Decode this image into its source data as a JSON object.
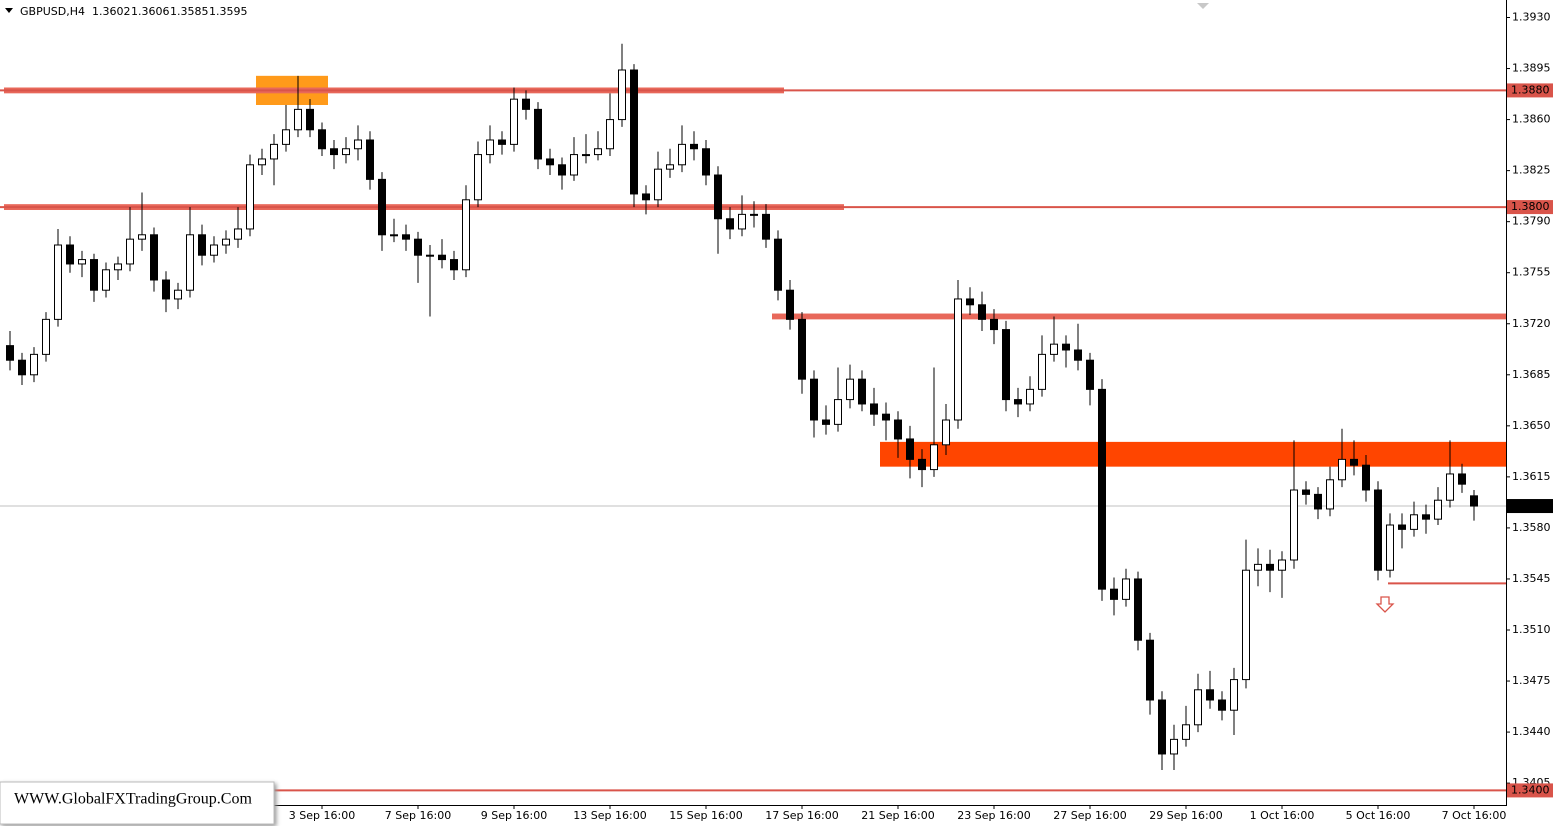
{
  "chart_data": {
    "type": "candlestick",
    "title": "GBPUSD,H4",
    "ylim": [
      1.339,
      1.3942
    ],
    "yticks": [
      {
        "value": 1.393,
        "label": "1.3930"
      },
      1.3895,
      {
        "value": 1.386,
        "label": "1.3860"
      },
      1.3825,
      {
        "value": 1.379,
        "label": "1.3790"
      },
      1.3755,
      {
        "value": 1.372,
        "label": "1.3720"
      },
      1.3685,
      {
        "value": 1.365,
        "label": "1.3650"
      },
      1.3615,
      {
        "value": 1.358,
        "label": "1.3580"
      },
      1.3545,
      {
        "value": 1.351,
        "label": "1.3510"
      },
      1.3475,
      {
        "value": 1.344,
        "label": "1.3440"
      },
      1.3405
    ],
    "categories": [
      null,
      null,
      null,
      null,
      null,
      null,
      null,
      null,
      null,
      null,
      null,
      null,
      null,
      null,
      null,
      null,
      null,
      null,
      null,
      null,
      null,
      null,
      null,
      null,
      null,
      null,
      "3 Sep 16:00",
      null,
      null,
      null,
      null,
      null,
      null,
      null,
      "7 Sep 16:00",
      null,
      null,
      null,
      null,
      null,
      null,
      null,
      "9 Sep 16:00",
      null,
      null,
      null,
      null,
      null,
      null,
      null,
      "13 Sep 16:00",
      null,
      null,
      null,
      null,
      null,
      null,
      null,
      "15 Sep 16:00",
      null,
      null,
      null,
      null,
      null,
      null,
      null,
      "17 Sep 16:00",
      null,
      null,
      null,
      null,
      null,
      null,
      null,
      "21 Sep 16:00",
      null,
      null,
      null,
      null,
      null,
      null,
      null,
      "23 Sep 16:00",
      null,
      null,
      null,
      null,
      null,
      null,
      null,
      "27 Sep 16:00",
      null,
      null,
      null,
      null,
      null,
      null,
      null,
      "29 Sep 16:00",
      null,
      null,
      null,
      null,
      null,
      null,
      null,
      "1 Oct 16:00",
      null,
      null,
      null,
      null,
      null,
      null,
      null,
      "5 Oct 16:00",
      null,
      null,
      null,
      null,
      null,
      null,
      null,
      "7 Oct 16:00"
    ],
    "ohlc": [
      [
        1.3705,
        1.3715,
        1.3688,
        1.3695
      ],
      [
        1.3695,
        1.37,
        1.3678,
        1.3685
      ],
      [
        1.3685,
        1.3704,
        1.368,
        1.3699
      ],
      [
        1.3699,
        1.3728,
        1.3694,
        1.3723
      ],
      [
        1.3723,
        1.3785,
        1.3718,
        1.3774
      ],
      [
        1.3774,
        1.378,
        1.3755,
        1.3761
      ],
      [
        1.3761,
        1.377,
        1.3752,
        1.3764
      ],
      [
        1.3764,
        1.3768,
        1.3735,
        1.3743
      ],
      [
        1.3743,
        1.3762,
        1.3738,
        1.3757
      ],
      [
        1.3757,
        1.3766,
        1.375,
        1.3761
      ],
      [
        1.3761,
        1.38,
        1.3756,
        1.3778
      ],
      [
        1.3778,
        1.381,
        1.377,
        1.3781
      ],
      [
        1.3781,
        1.3786,
        1.3742,
        1.375
      ],
      [
        1.375,
        1.3756,
        1.3728,
        1.3737
      ],
      [
        1.3737,
        1.3748,
        1.373,
        1.3743
      ],
      [
        1.3743,
        1.38,
        1.3738,
        1.3781
      ],
      [
        1.3781,
        1.3788,
        1.376,
        1.3767
      ],
      [
        1.3767,
        1.378,
        1.3762,
        1.3774
      ],
      [
        1.3774,
        1.3784,
        1.3768,
        1.3778
      ],
      [
        1.3778,
        1.38,
        1.3772,
        1.3785
      ],
      [
        1.3785,
        1.3836,
        1.378,
        1.3829
      ],
      [
        1.3829,
        1.384,
        1.3822,
        1.3833
      ],
      [
        1.3833,
        1.385,
        1.3815,
        1.3843
      ],
      [
        1.3843,
        1.387,
        1.3838,
        1.3853
      ],
      [
        1.3853,
        1.389,
        1.3848,
        1.3867
      ],
      [
        1.3867,
        1.3874,
        1.3848,
        1.3853
      ],
      [
        1.3853,
        1.3858,
        1.3835,
        1.384
      ],
      [
        1.384,
        1.3846,
        1.3826,
        1.3836
      ],
      [
        1.3836,
        1.3848,
        1.383,
        1.384
      ],
      [
        1.384,
        1.3856,
        1.3832,
        1.3846
      ],
      [
        1.3846,
        1.3852,
        1.3812,
        1.3819
      ],
      [
        1.3819,
        1.3824,
        1.377,
        1.3781
      ],
      [
        1.3781,
        1.3792,
        1.3776,
        1.3781
      ],
      [
        1.3781,
        1.3788,
        1.377,
        1.3778
      ],
      [
        1.3778,
        1.3783,
        1.3748,
        1.3767
      ],
      [
        1.3767,
        1.3774,
        1.3725,
        1.3767
      ],
      [
        1.3767,
        1.3778,
        1.3758,
        1.3764
      ],
      [
        1.3764,
        1.377,
        1.375,
        1.3757
      ],
      [
        1.3757,
        1.3815,
        1.3752,
        1.3805
      ],
      [
        1.3805,
        1.3845,
        1.38,
        1.3836
      ],
      [
        1.3836,
        1.3856,
        1.383,
        1.3846
      ],
      [
        1.3846,
        1.3852,
        1.3836,
        1.3843
      ],
      [
        1.3843,
        1.3882,
        1.3838,
        1.3874
      ],
      [
        1.3874,
        1.388,
        1.386,
        1.3867
      ],
      [
        1.3867,
        1.3872,
        1.3826,
        1.3833
      ],
      [
        1.3833,
        1.384,
        1.3822,
        1.3829
      ],
      [
        1.3829,
        1.3834,
        1.3812,
        1.3822
      ],
      [
        1.3822,
        1.3848,
        1.3818,
        1.3836
      ],
      [
        1.3836,
        1.385,
        1.383,
        1.3836
      ],
      [
        1.3836,
        1.3852,
        1.3832,
        1.384
      ],
      [
        1.384,
        1.3878,
        1.3835,
        1.386
      ],
      [
        1.386,
        1.3912,
        1.3855,
        1.3894
      ],
      [
        1.3894,
        1.3898,
        1.38,
        1.3809
      ],
      [
        1.3809,
        1.3815,
        1.3795,
        1.3805
      ],
      [
        1.3805,
        1.3838,
        1.38,
        1.3826
      ],
      [
        1.3826,
        1.384,
        1.382,
        1.3829
      ],
      [
        1.3829,
        1.3856,
        1.3824,
        1.3843
      ],
      [
        1.3843,
        1.3852,
        1.3832,
        1.384
      ],
      [
        1.384,
        1.3846,
        1.3815,
        1.3822
      ],
      [
        1.3822,
        1.3828,
        1.3768,
        1.3792
      ],
      [
        1.3792,
        1.38,
        1.3778,
        1.3785
      ],
      [
        1.3785,
        1.3808,
        1.378,
        1.3795
      ],
      [
        1.3795,
        1.3804,
        1.3786,
        1.3795
      ],
      [
        1.3795,
        1.3802,
        1.3772,
        1.3778
      ],
      [
        1.3778,
        1.3784,
        1.3736,
        1.3743
      ],
      [
        1.3743,
        1.375,
        1.3716,
        1.3723
      ],
      [
        1.3723,
        1.3728,
        1.3672,
        1.3682
      ],
      [
        1.3682,
        1.3688,
        1.3642,
        1.3654
      ],
      [
        1.3654,
        1.3664,
        1.3644,
        1.3651
      ],
      [
        1.3651,
        1.369,
        1.3646,
        1.3668
      ],
      [
        1.3668,
        1.3692,
        1.3662,
        1.3682
      ],
      [
        1.3682,
        1.3688,
        1.366,
        1.3665
      ],
      [
        1.3665,
        1.3676,
        1.365,
        1.3658
      ],
      [
        1.3658,
        1.3666,
        1.364,
        1.3654
      ],
      [
        1.3654,
        1.366,
        1.3628,
        1.3641
      ],
      [
        1.3641,
        1.365,
        1.3614,
        1.3627
      ],
      [
        1.3627,
        1.3634,
        1.3608,
        1.362
      ],
      [
        1.362,
        1.369,
        1.3615,
        1.3637
      ],
      [
        1.3637,
        1.3665,
        1.363,
        1.3654
      ],
      [
        1.3654,
        1.375,
        1.3648,
        1.3737
      ],
      [
        1.3737,
        1.3745,
        1.3726,
        1.3733
      ],
      [
        1.3733,
        1.3742,
        1.3715,
        1.3723
      ],
      [
        1.3723,
        1.373,
        1.3706,
        1.3716
      ],
      [
        1.3716,
        1.3722,
        1.366,
        1.3668
      ],
      [
        1.3668,
        1.3676,
        1.3656,
        1.3665
      ],
      [
        1.3665,
        1.3684,
        1.366,
        1.3675
      ],
      [
        1.3675,
        1.3712,
        1.367,
        1.3699
      ],
      [
        1.3699,
        1.3725,
        1.3694,
        1.3706
      ],
      [
        1.3706,
        1.3712,
        1.369,
        1.3702
      ],
      [
        1.3702,
        1.372,
        1.3688,
        1.3695
      ],
      [
        1.3695,
        1.37,
        1.3664,
        1.3675
      ],
      [
        1.3675,
        1.3682,
        1.353,
        1.3538
      ],
      [
        1.3538,
        1.3546,
        1.352,
        1.3531
      ],
      [
        1.3531,
        1.3552,
        1.3526,
        1.3545
      ],
      [
        1.3545,
        1.355,
        1.3496,
        1.3503
      ],
      [
        1.3503,
        1.3508,
        1.3452,
        1.3462
      ],
      [
        1.3462,
        1.3468,
        1.3414,
        1.3425
      ],
      [
        1.3425,
        1.3445,
        1.3414,
        1.3435
      ],
      [
        1.3435,
        1.3458,
        1.343,
        1.3445
      ],
      [
        1.3445,
        1.348,
        1.344,
        1.3469
      ],
      [
        1.3469,
        1.3482,
        1.3456,
        1.3462
      ],
      [
        1.3462,
        1.3468,
        1.3448,
        1.3455
      ],
      [
        1.3455,
        1.3484,
        1.3438,
        1.3476
      ],
      [
        1.3476,
        1.3572,
        1.347,
        1.3551
      ],
      [
        1.3551,
        1.3566,
        1.354,
        1.3555
      ],
      [
        1.3555,
        1.3565,
        1.3536,
        1.3551
      ],
      [
        1.3551,
        1.3564,
        1.3532,
        1.3558
      ],
      [
        1.3558,
        1.364,
        1.3552,
        1.3606
      ],
      [
        1.3606,
        1.3612,
        1.3596,
        1.3603
      ],
      [
        1.3603,
        1.3608,
        1.3586,
        1.3593
      ],
      [
        1.3593,
        1.3622,
        1.3588,
        1.3613
      ],
      [
        1.3613,
        1.3648,
        1.3608,
        1.3627
      ],
      [
        1.3627,
        1.364,
        1.3616,
        1.3623
      ],
      [
        1.3623,
        1.363,
        1.3598,
        1.3606
      ],
      [
        1.3606,
        1.3612,
        1.3544,
        1.3551
      ],
      [
        1.3551,
        1.359,
        1.3546,
        1.3582
      ],
      [
        1.3582,
        1.359,
        1.3566,
        1.3579
      ],
      [
        1.3579,
        1.3598,
        1.3574,
        1.3589
      ],
      [
        1.3589,
        1.3596,
        1.3576,
        1.3586
      ],
      [
        1.3586,
        1.3608,
        1.3582,
        1.3599
      ],
      [
        1.3599,
        1.364,
        1.3594,
        1.3617
      ],
      [
        1.3617,
        1.3624,
        1.3604,
        1.361
      ],
      [
        1.3602,
        1.3606,
        1.3585,
        1.3595
      ]
    ],
    "up_color": "#ffffff",
    "down_color": "#000000",
    "levels": [
      {
        "value": 1.388,
        "label": "1.3880"
      },
      {
        "value": 1.38,
        "label": "1.3800"
      },
      {
        "value": 1.34,
        "label": "1.3400"
      }
    ],
    "level_color": "#d9544a",
    "bands": [
      {
        "low": 1.387,
        "high": 1.389,
        "start": 21,
        "end": 26,
        "color": "#ff9a1a"
      },
      {
        "low": 1.3878,
        "high": 1.3882,
        "start": 0,
        "end": 64,
        "color": "#e8685a"
      },
      {
        "low": 1.3798,
        "high": 1.3802,
        "start": 0,
        "end": 69,
        "color": "#e8685a"
      },
      {
        "low": 1.3723,
        "high": 1.3727,
        "start": 64,
        "color": "#e8685a"
      },
      {
        "low": 1.3622,
        "high": 1.3639,
        "start": 73,
        "color": "#ff4500"
      }
    ],
    "lines": [
      {
        "value": 1.3542,
        "start": 115,
        "color": "#d9544a"
      }
    ],
    "watermark": "WWW.GlobalFXTradingGroup.Com"
  }
}
